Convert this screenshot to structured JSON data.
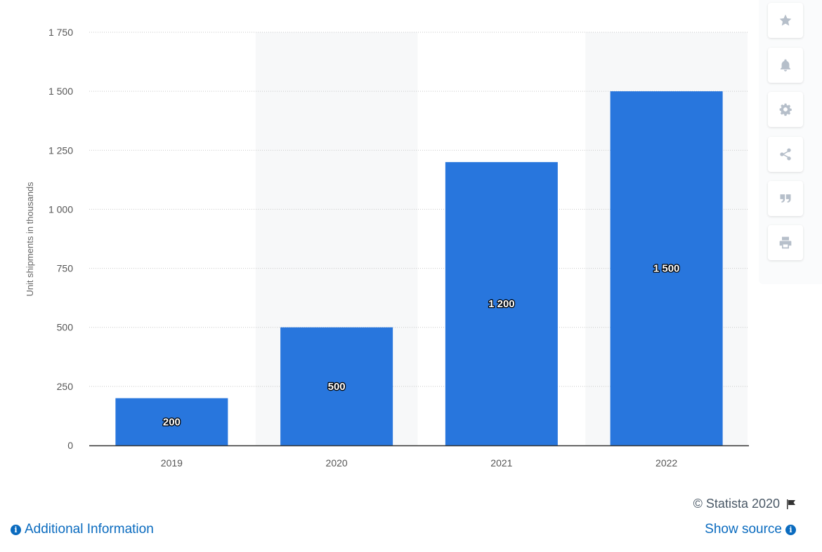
{
  "chart_data": {
    "type": "bar",
    "categories": [
      "2019",
      "2020",
      "2021",
      "2022"
    ],
    "values": [
      200,
      500,
      1200,
      1500
    ],
    "value_labels": [
      "200",
      "500",
      "1 200",
      "1 500"
    ],
    "ylabel": "Unit shipments in thousands",
    "ylim": [
      0,
      1750
    ],
    "yticks": [
      0,
      250,
      500,
      750,
      1000,
      1250,
      1500,
      1750
    ],
    "ytick_labels": [
      "0",
      "250",
      "500",
      "750",
      "1 000",
      "1 250",
      "1 500",
      "1 750"
    ],
    "grid": true,
    "bar_color": "#2876dd"
  },
  "toolbar": {
    "icons": [
      "star-icon",
      "bell-icon",
      "gear-icon",
      "share-icon",
      "quote-icon",
      "print-icon"
    ]
  },
  "footer": {
    "credit": "© Statista 2020",
    "additional_info": "Additional Information",
    "show_source": "Show source"
  }
}
